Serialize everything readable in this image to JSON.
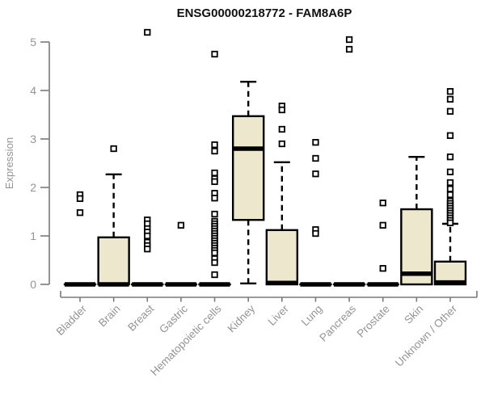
{
  "chart_data": {
    "type": "box",
    "title": "ENSG00000218772 - FAM8A6P",
    "ylabel": "Expression",
    "xlabel": "",
    "ylim": [
      0,
      5
    ],
    "yticks": [
      0,
      1,
      2,
      3,
      4,
      5
    ],
    "grid": false,
    "legend": "none",
    "box_fill": "#ECE7CD",
    "box_stroke": "#000000",
    "axis_color": "#7a7a7a",
    "label_color": "#949494",
    "categories": [
      "Bladder",
      "Brain",
      "Breast",
      "Gastric",
      "Hematopoietic cells",
      "Kidney",
      "Liver",
      "Lung",
      "Pancreas",
      "Prostate",
      "Skin",
      "Unknown / Other"
    ],
    "series": [
      {
        "name": "Bladder",
        "q1": 0,
        "median": 0,
        "q3": 0,
        "whisker_low": 0,
        "whisker_high": 0,
        "outliers": [
          1.85,
          1.77,
          1.48
        ]
      },
      {
        "name": "Brain",
        "q1": 0,
        "median": 0,
        "q3": 0.97,
        "whisker_low": 0,
        "whisker_high": 2.27,
        "outliers": [
          2.8
        ]
      },
      {
        "name": "Breast",
        "q1": 0,
        "median": 0,
        "q3": 0,
        "whisker_low": 0,
        "whisker_high": 0,
        "outliers": [
          5.2,
          1.33,
          1.25,
          1.15,
          1.08,
          1.0,
          0.87,
          0.8,
          0.73
        ]
      },
      {
        "name": "Gastric",
        "q1": 0,
        "median": 0,
        "q3": 0,
        "whisker_low": 0,
        "whisker_high": 0,
        "outliers": [
          1.22
        ]
      },
      {
        "name": "Hematopoietic cells",
        "q1": 0,
        "median": 0,
        "q3": 0,
        "whisker_low": 0,
        "whisker_high": 0,
        "outliers": [
          4.75,
          2.88,
          2.75,
          2.3,
          2.18,
          2.12,
          1.88,
          1.78,
          1.45,
          1.3,
          1.25,
          1.2,
          1.15,
          1.1,
          1.05,
          1.0,
          0.95,
          0.9,
          0.85,
          0.8,
          0.75,
          0.7,
          0.65,
          0.53,
          0.45,
          0.2
        ]
      },
      {
        "name": "Kidney",
        "q1": 1.33,
        "median": 2.8,
        "q3": 3.47,
        "whisker_low": 0.02,
        "whisker_high": 4.18,
        "outliers": []
      },
      {
        "name": "Liver",
        "q1": 0,
        "median": 0.03,
        "q3": 1.12,
        "whisker_low": 0,
        "whisker_high": 2.52,
        "outliers": [
          3.68,
          3.6,
          3.2,
          2.9
        ]
      },
      {
        "name": "Lung",
        "q1": 0,
        "median": 0,
        "q3": 0,
        "whisker_low": 0,
        "whisker_high": 0,
        "outliers": [
          2.93,
          2.6,
          2.28,
          1.13,
          1.05
        ]
      },
      {
        "name": "Pancreas",
        "q1": 0,
        "median": 0,
        "q3": 0,
        "whisker_low": 0,
        "whisker_high": 0,
        "outliers": [
          5.05,
          4.85
        ]
      },
      {
        "name": "Prostate",
        "q1": 0,
        "median": 0,
        "q3": 0,
        "whisker_low": 0,
        "whisker_high": 0,
        "outliers": [
          1.68,
          1.22,
          0.33
        ]
      },
      {
        "name": "Skin",
        "q1": 0,
        "median": 0.22,
        "q3": 1.55,
        "whisker_low": 0,
        "whisker_high": 2.63,
        "outliers": []
      },
      {
        "name": "Unknown / Other",
        "q1": 0,
        "median": 0.04,
        "q3": 0.47,
        "whisker_low": 0,
        "whisker_high": 1.25,
        "outliers": [
          3.98,
          3.82,
          3.57,
          3.07,
          2.63,
          2.32,
          2.1,
          1.97,
          1.85,
          1.72,
          1.67,
          1.62,
          1.57,
          1.52,
          1.47,
          1.42,
          1.37,
          1.32,
          1.27
        ]
      }
    ]
  }
}
